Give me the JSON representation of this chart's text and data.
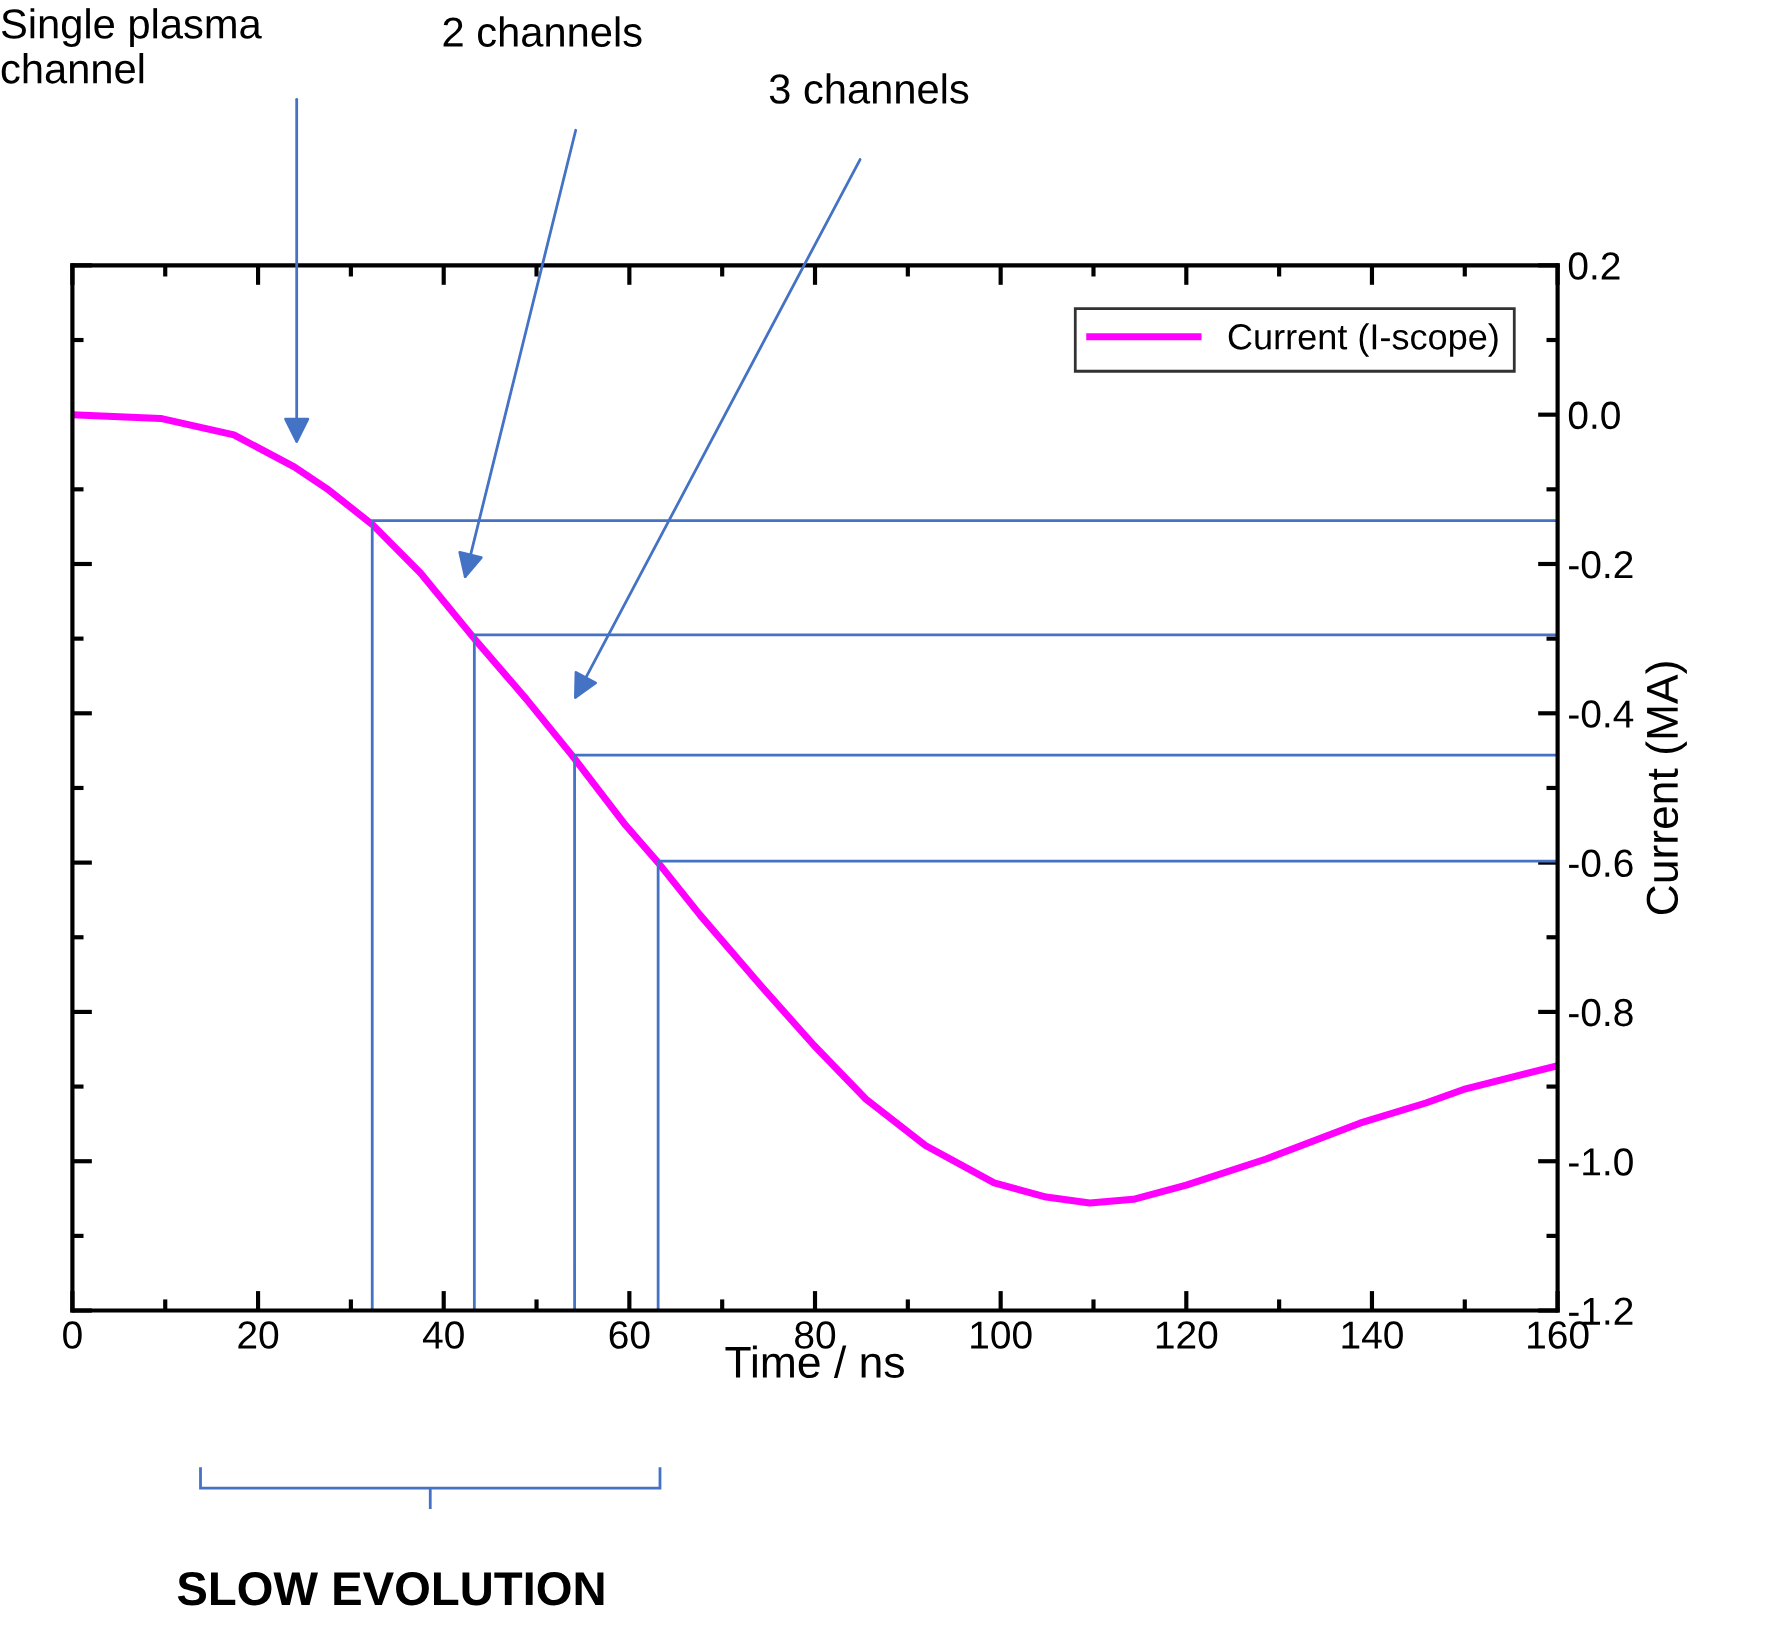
{
  "chart_data": {
    "type": "line",
    "xlabel": "Time / ns",
    "ylabel": "Current (MA)",
    "xlim": [
      0,
      160
    ],
    "xticks": [
      0,
      20,
      40,
      60,
      80,
      100,
      120,
      140,
      160
    ],
    "ylim": [
      -1.2,
      0.2
    ],
    "yticks": [
      -1.2,
      {
        "value": -1,
        "label": "-1.0"
      },
      -0.8,
      -0.6,
      -0.4,
      -0.2,
      {
        "value": 0,
        "label": "0.0"
      },
      0.2
    ],
    "grid": false,
    "legend": "top right",
    "series": [
      {
        "name": "Current (I-scope)",
        "color": "#ff00ff",
        "x": [
          0,
          9.5,
          17.4,
          23.9,
          27.4,
          32.3,
          37.5,
          43.3,
          48.9,
          53.8,
          59.6,
          63.1,
          67.6,
          74.1,
          79.9,
          85.5,
          91.9,
          99.3,
          104.9,
          109.6,
          114.3,
          120,
          128.6,
          138.7,
          145.8,
          150.1,
          160
        ],
        "values": [
          0,
          -0.005,
          -0.027,
          -0.07,
          -0.099,
          -0.147,
          -0.212,
          -0.3,
          -0.381,
          -0.456,
          -0.55,
          -0.6,
          -0.67,
          -0.764,
          -0.845,
          -0.917,
          -0.979,
          -1.029,
          -1.048,
          -1.056,
          -1.051,
          -1.032,
          -0.997,
          -0.949,
          -0.922,
          -0.903,
          -0.872
        ]
      },
      {
        "color": "#4472c4",
        "x": [
          32.3,
          32.3,
          160
        ],
        "values": [
          -1.2,
          -0.142,
          -0.142
        ]
      },
      {
        "color": "#4472c4",
        "x": [
          43.3,
          43.3,
          160
        ],
        "values": [
          -1.2,
          -0.295,
          -0.295
        ]
      },
      {
        "color": "#4472c4",
        "x": [
          54.1,
          54.1,
          160
        ],
        "values": [
          -1.2,
          -0.456,
          -0.456
        ]
      },
      {
        "color": "#4472c4",
        "x": [
          63.1,
          63.1,
          160
        ],
        "values": [
          -1.2,
          -0.598,
          -0.598
        ]
      }
    ],
    "annotations": [
      "Single plasma\nchannel",
      "2 channels",
      "3 channels",
      "SLOW EVOLUTION"
    ]
  }
}
